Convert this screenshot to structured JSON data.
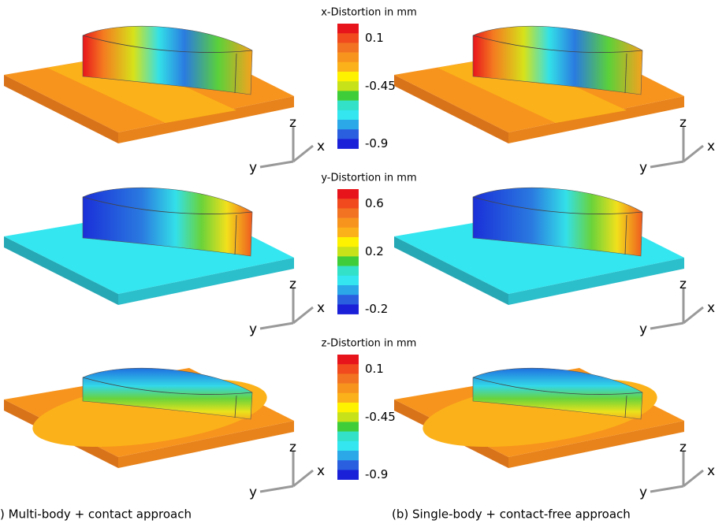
{
  "colorbars": [
    {
      "title": "x-Distortion in mm",
      "ticks": [
        "0.1",
        "-0.45",
        "-0.9"
      ]
    },
    {
      "title": "y-Distortion in mm",
      "ticks": [
        "0.6",
        "0.2",
        "-0.2"
      ]
    },
    {
      "title": "z-Distortion in mm",
      "ticks": [
        "0.1",
        "-0.45",
        "-0.9"
      ]
    }
  ],
  "axis_labels": {
    "x": "x",
    "y": "y",
    "z": "z"
  },
  "captions": [
    ") Multi-body + contact approach",
    "(b) Single-body + contact-free approach"
  ]
}
